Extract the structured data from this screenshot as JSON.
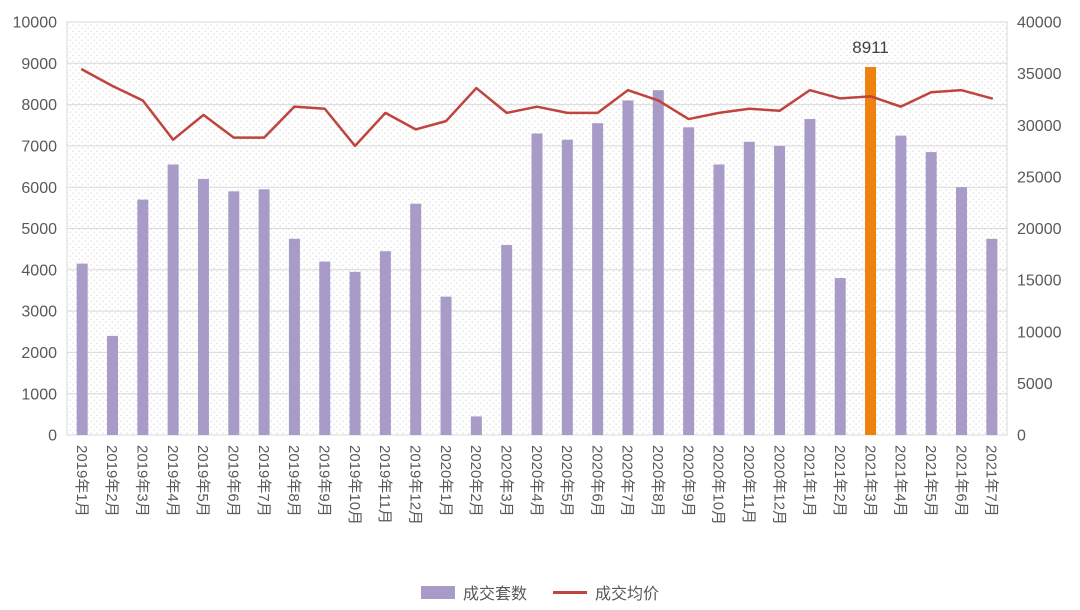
{
  "chart_data": {
    "type": "bar",
    "title": "",
    "categories": [
      "2019年1月",
      "2019年2月",
      "2019年3月",
      "2019年4月",
      "2019年5月",
      "2019年6月",
      "2019年7月",
      "2019年8月",
      "2019年9月",
      "2019年10月",
      "2019年11月",
      "2019年12月",
      "2020年1月",
      "2020年2月",
      "2020年3月",
      "2020年4月",
      "2020年5月",
      "2020年6月",
      "2020年7月",
      "2020年8月",
      "2020年9月",
      "2020年10月",
      "2020年11月",
      "2020年12月",
      "2021年1月",
      "2021年2月",
      "2021年3月",
      "2021年4月",
      "2021年5月",
      "2021年6月",
      "2021年7月"
    ],
    "series": [
      {
        "name": "成交套数",
        "type": "bar",
        "axis": "left",
        "color": "#a89bc7",
        "values": [
          4150,
          2400,
          5700,
          6550,
          6200,
          5900,
          5950,
          4750,
          4200,
          3950,
          4450,
          5600,
          3350,
          450,
          4600,
          7300,
          7150,
          7550,
          8100,
          8350,
          7450,
          6550,
          7100,
          7000,
          7650,
          3800,
          8911,
          7250,
          6850,
          6000,
          4750
        ],
        "highlight": {
          "index": 26,
          "color": "#ef810f",
          "label": "8911"
        }
      },
      {
        "name": "成交均价",
        "type": "line",
        "axis": "right",
        "color": "#c0443e",
        "values": [
          35400,
          33800,
          32400,
          28600,
          31000,
          28800,
          28800,
          31800,
          31600,
          28000,
          31200,
          29600,
          30400,
          33600,
          31200,
          31800,
          31200,
          31200,
          33400,
          32400,
          30600,
          31200,
          31600,
          31400,
          33400,
          32600,
          32800,
          31800,
          33200,
          33400,
          32600
        ]
      }
    ],
    "left_axis": {
      "min": 0,
      "max": 10000,
      "step": 1000,
      "ticks": [
        "0",
        "1000",
        "2000",
        "3000",
        "4000",
        "5000",
        "6000",
        "7000",
        "8000",
        "9000",
        "10000"
      ]
    },
    "right_axis": {
      "min": 0,
      "max": 40000,
      "step": 5000,
      "ticks": [
        "0",
        "5000",
        "10000",
        "15000",
        "20000",
        "25000",
        "30000",
        "35000",
        "40000"
      ]
    },
    "grid": true,
    "legend_position": "bottom"
  },
  "annotation": {
    "text": "8911"
  },
  "colors": {
    "bar": "#a89bc7",
    "highlight_bar": "#ef810f",
    "line": "#c0443e",
    "grid": "#d9d9d9",
    "axis_text": "#595959",
    "annotation_text": "#404040"
  }
}
